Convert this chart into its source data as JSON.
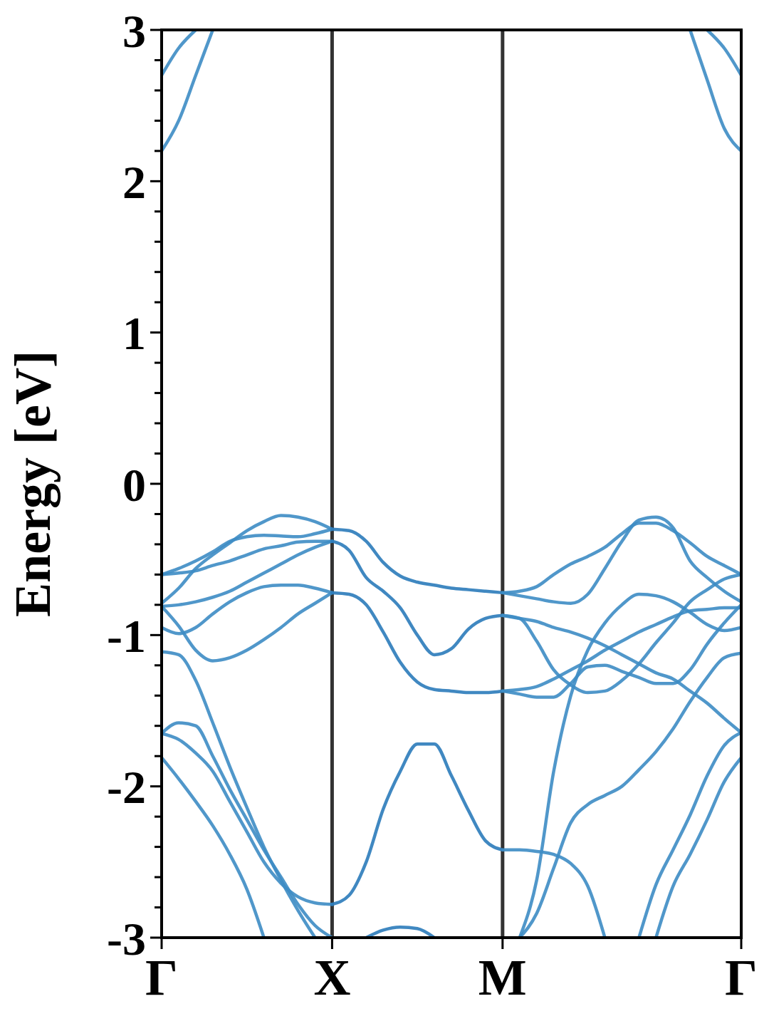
{
  "chart_data": {
    "type": "line",
    "ylabel": "Energy [eV]",
    "ylim": [
      -3,
      3
    ],
    "categories": [
      "Γ",
      null,
      null,
      null,
      null,
      null,
      null,
      null,
      null,
      null,
      "X",
      null,
      null,
      null,
      null,
      null,
      null,
      null,
      null,
      null,
      "M",
      null,
      null,
      null,
      null,
      null,
      null,
      null,
      null,
      null,
      null,
      null,
      null,
      null,
      "Γ"
    ],
    "yticks": [
      -3,
      {
        "value": -2.8,
        "label": null
      },
      {
        "value": -2.6,
        "label": null
      },
      {
        "value": -2.4,
        "label": null
      },
      {
        "value": -2.2,
        "label": null
      },
      -2,
      {
        "value": -1.8,
        "label": null
      },
      {
        "value": -1.6,
        "label": null
      },
      {
        "value": -1.4,
        "label": null
      },
      {
        "value": -1.2,
        "label": null
      },
      -1,
      {
        "value": -0.8,
        "label": null
      },
      {
        "value": -0.6,
        "label": null
      },
      {
        "value": -0.4,
        "label": null
      },
      {
        "value": -0.2,
        "label": null
      },
      0,
      {
        "value": 0.2,
        "label": null
      },
      {
        "value": 0.4,
        "label": null
      },
      {
        "value": 0.6,
        "label": null
      },
      {
        "value": 0.8,
        "label": null
      },
      1,
      {
        "value": 1.2,
        "label": null
      },
      {
        "value": 1.4,
        "label": null
      },
      {
        "value": 1.6,
        "label": null
      },
      {
        "value": 1.8,
        "label": null
      },
      2,
      {
        "value": 2.2,
        "label": null
      },
      {
        "value": 2.4,
        "label": null
      },
      {
        "value": 2.6,
        "label": null
      },
      {
        "value": 2.8,
        "label": null
      },
      3
    ],
    "ref_lines": [
      {
        "axis": "x",
        "value": "X",
        "color": "#333333"
      },
      {
        "axis": "x",
        "value": "M",
        "color": "#333333"
      }
    ],
    "series": [
      {
        "color": "#3d8cc4",
        "values": [
          2.7,
          2.88,
          3,
          null,
          null,
          null,
          null,
          null,
          null,
          null,
          null,
          null,
          null,
          null,
          null,
          null,
          null,
          null,
          null,
          null,
          null,
          null,
          null,
          null,
          null,
          null,
          null,
          null,
          null,
          null,
          null,
          null,
          null,
          null,
          null
        ]
      },
      {
        "color": "#3d8cc4",
        "values": [
          2.2,
          2.4,
          2.7,
          3,
          null,
          null,
          null,
          null,
          null,
          null,
          null,
          null,
          null,
          null,
          null,
          null,
          null,
          null,
          null,
          null,
          null,
          null,
          null,
          null,
          null,
          null,
          null,
          null,
          null,
          null,
          null,
          null,
          null,
          null,
          null
        ]
      },
      {
        "color": "#3d8cc4",
        "values": [
          -0.6,
          -0.56,
          -0.51,
          -0.45,
          -0.38,
          -0.35,
          -0.34,
          -0.345,
          -0.35,
          -0.33,
          -0.3,
          null,
          null,
          null,
          null,
          null,
          null,
          null,
          null,
          null,
          null,
          null,
          null,
          null,
          null,
          null,
          null,
          null,
          null,
          null,
          null,
          null,
          null,
          null,
          null
        ]
      },
      {
        "color": "#3d8cc4",
        "values": [
          -0.79,
          -0.69,
          -0.56,
          -0.47,
          -0.39,
          -0.31,
          -0.25,
          -0.21,
          -0.22,
          -0.25,
          -0.3,
          null,
          null,
          null,
          null,
          null,
          null,
          null,
          null,
          null,
          null,
          null,
          null,
          null,
          null,
          null,
          null,
          null,
          null,
          null,
          null,
          null,
          null,
          null,
          null
        ]
      },
      {
        "color": "#3d8cc4",
        "values": [
          -0.6,
          -0.59,
          -0.575,
          -0.54,
          -0.51,
          -0.47,
          -0.43,
          -0.41,
          -0.385,
          -0.38,
          -0.38,
          null,
          null,
          null,
          null,
          null,
          null,
          null,
          null,
          null,
          null,
          null,
          null,
          null,
          null,
          null,
          null,
          null,
          null,
          null,
          null,
          null,
          null,
          null,
          null
        ]
      },
      {
        "color": "#3d8cc4",
        "values": [
          -0.81,
          -0.8,
          -0.78,
          -0.75,
          -0.71,
          -0.65,
          -0.59,
          -0.53,
          -0.47,
          -0.42,
          -0.38,
          null,
          null,
          null,
          null,
          null,
          null,
          null,
          null,
          null,
          null,
          null,
          null,
          null,
          null,
          null,
          null,
          null,
          null,
          null,
          null,
          null,
          null,
          null,
          null
        ]
      },
      {
        "color": "#3d8cc4",
        "values": [
          -0.95,
          -0.99,
          -0.95,
          -0.86,
          -0.78,
          -0.72,
          -0.68,
          -0.67,
          -0.67,
          -0.69,
          -0.72,
          null,
          null,
          null,
          null,
          null,
          null,
          null,
          null,
          null,
          null,
          null,
          null,
          null,
          null,
          null,
          null,
          null,
          null,
          null,
          null,
          null,
          null,
          null,
          null
        ]
      },
      {
        "color": "#3d8cc4",
        "values": [
          -0.81,
          -0.94,
          -1.1,
          -1.17,
          -1.15,
          -1.1,
          -1.03,
          -0.95,
          -0.86,
          -0.79,
          -0.72,
          null,
          null,
          null,
          null,
          null,
          null,
          null,
          null,
          null,
          null,
          null,
          null,
          null,
          null,
          null,
          null,
          null,
          null,
          null,
          null,
          null,
          null,
          null,
          null
        ]
      },
      {
        "color": "#3d8cc4",
        "values": [
          -1.11,
          -1.13,
          -1.3,
          -1.58,
          -1.87,
          -2.14,
          -2.4,
          -2.62,
          -2.82,
          -3,
          null,
          null,
          null,
          null,
          null,
          null,
          null,
          null,
          null,
          null,
          null,
          null,
          null,
          null,
          null,
          null,
          null,
          null,
          null,
          null,
          null,
          null,
          null,
          null,
          null
        ]
      },
      {
        "color": "#3d8cc4",
        "values": [
          -1.65,
          -1.58,
          -1.6,
          -1.8,
          -2.02,
          -2.22,
          -2.42,
          -2.6,
          -2.78,
          -2.92,
          -3,
          null,
          null,
          null,
          null,
          null,
          null,
          null,
          null,
          null,
          null,
          null,
          null,
          null,
          null,
          null,
          null,
          null,
          null,
          null,
          null,
          null,
          null,
          null,
          null
        ]
      },
      {
        "color": "#3d8cc4",
        "values": [
          -1.65,
          -1.69,
          -1.78,
          -1.9,
          -2.1,
          -2.3,
          -2.5,
          -2.64,
          -2.73,
          -2.77,
          -2.78,
          null,
          null,
          null,
          null,
          null,
          null,
          null,
          null,
          null,
          null,
          null,
          null,
          null,
          null,
          null,
          null,
          null,
          null,
          null,
          null,
          null,
          null,
          null,
          null
        ]
      },
      {
        "color": "#3d8cc4",
        "values": [
          -1.81,
          -1.95,
          -2.1,
          -2.26,
          -2.45,
          -2.68,
          -3,
          null,
          null,
          null,
          null,
          null,
          null,
          null,
          null,
          null,
          null,
          null,
          null,
          null,
          null,
          null,
          null,
          null,
          null,
          null,
          null,
          null,
          null,
          null,
          null,
          null,
          null,
          null,
          null
        ]
      },
      {
        "color": "#2b7bba",
        "values": [
          null,
          null,
          null,
          null,
          null,
          null,
          null,
          null,
          null,
          null,
          -0.3,
          -0.31,
          -0.38,
          -0.52,
          -0.61,
          -0.65,
          -0.67,
          -0.69,
          -0.7,
          -0.71,
          -0.72,
          null,
          null,
          null,
          null,
          null,
          null,
          null,
          null,
          null,
          null,
          null,
          null,
          null,
          null
        ]
      },
      {
        "color": "#2b7bba",
        "values": [
          null,
          null,
          null,
          null,
          null,
          null,
          null,
          null,
          null,
          null,
          -0.38,
          -0.44,
          -0.62,
          -0.71,
          -0.82,
          -1,
          -1.13,
          -1.09,
          -0.96,
          -0.89,
          -0.87,
          null,
          null,
          null,
          null,
          null,
          null,
          null,
          null,
          null,
          null,
          null,
          null,
          null,
          null
        ]
      },
      {
        "color": "#2b7bba",
        "values": [
          null,
          null,
          null,
          null,
          null,
          null,
          null,
          null,
          null,
          null,
          -0.72,
          -0.73,
          -0.8,
          -0.98,
          -1.18,
          -1.31,
          -1.36,
          -1.37,
          -1.38,
          -1.38,
          -1.37,
          null,
          null,
          null,
          null,
          null,
          null,
          null,
          null,
          null,
          null,
          null,
          null,
          null,
          null
        ]
      },
      {
        "color": "#2b7bba",
        "values": [
          null,
          null,
          null,
          null,
          null,
          null,
          null,
          null,
          null,
          null,
          -2.78,
          -2.72,
          -2.5,
          -2.15,
          -1.9,
          -1.72,
          -1.72,
          -1.93,
          -2.16,
          -2.36,
          -2.42,
          null,
          null,
          null,
          null,
          null,
          null,
          null,
          null,
          null,
          null,
          null,
          null,
          null,
          null
        ]
      },
      {
        "color": "#2b7bba",
        "values": [
          null,
          null,
          null,
          null,
          null,
          null,
          null,
          null,
          null,
          null,
          null,
          null,
          -3,
          -2.95,
          -2.93,
          -2.94,
          -3,
          null,
          null,
          null,
          null,
          null,
          null,
          null,
          null,
          null,
          null,
          null,
          null,
          null,
          null,
          null,
          null,
          null,
          null
        ]
      },
      {
        "color": "#3d8cc4",
        "values": [
          null,
          null,
          null,
          null,
          null,
          null,
          null,
          null,
          null,
          null,
          null,
          null,
          null,
          null,
          null,
          null,
          null,
          null,
          null,
          null,
          -0.72,
          -0.71,
          -0.68,
          -0.6,
          -0.53,
          -0.48,
          -0.42,
          -0.33,
          -0.26,
          -0.26,
          -0.31,
          -0.39,
          -0.48,
          -0.54,
          -0.6
        ]
      },
      {
        "color": "#3d8cc4",
        "values": [
          null,
          null,
          null,
          null,
          null,
          null,
          null,
          null,
          null,
          null,
          null,
          null,
          null,
          null,
          null,
          null,
          null,
          null,
          null,
          null,
          -0.72,
          -0.74,
          -0.76,
          -0.78,
          -0.79,
          -0.73,
          -0.56,
          -0.38,
          -0.24,
          -0.22,
          -0.29,
          -0.51,
          -0.62,
          -0.71,
          -0.78
        ]
      },
      {
        "color": "#3d8cc4",
        "values": [
          null,
          null,
          null,
          null,
          null,
          null,
          null,
          null,
          null,
          null,
          null,
          null,
          null,
          null,
          null,
          null,
          null,
          null,
          null,
          null,
          -0.87,
          -0.89,
          -0.91,
          -0.95,
          -0.98,
          -1.02,
          -1.07,
          -1.13,
          -1.19,
          -1.25,
          -1.29,
          -1.37,
          -1.45,
          -1.55,
          -1.645
        ]
      },
      {
        "color": "#3d8cc4",
        "values": [
          null,
          null,
          null,
          null,
          null,
          null,
          null,
          null,
          null,
          null,
          null,
          null,
          null,
          null,
          null,
          null,
          null,
          null,
          null,
          null,
          -0.87,
          -0.89,
          -1.04,
          -1.23,
          -1.33,
          -1.38,
          -1.37,
          -1.3,
          -1.19,
          -1.05,
          -0.92,
          -0.78,
          -0.7,
          -0.63,
          -0.6
        ]
      },
      {
        "color": "#3d8cc4",
        "values": [
          null,
          null,
          null,
          null,
          null,
          null,
          null,
          null,
          null,
          null,
          null,
          null,
          null,
          null,
          null,
          null,
          null,
          null,
          null,
          null,
          -1.37,
          -1.36,
          -1.34,
          -1.29,
          -1.23,
          -1.17,
          -1.1,
          -1.04,
          -0.98,
          -0.93,
          -0.88,
          -0.84,
          -0.83,
          -0.82,
          -0.82
        ]
      },
      {
        "color": "#3d8cc4",
        "values": [
          null,
          null,
          null,
          null,
          null,
          null,
          null,
          null,
          null,
          null,
          null,
          null,
          null,
          null,
          null,
          null,
          null,
          null,
          null,
          null,
          -1.37,
          -1.39,
          -1.41,
          -1.41,
          -1.32,
          -1.21,
          -1.2,
          -1.24,
          -1.28,
          -1.32,
          -1.32,
          -1.23,
          -1.06,
          -0.92,
          -0.8
        ]
      },
      {
        "color": "#3d8cc4",
        "values": [
          null,
          null,
          null,
          null,
          null,
          null,
          null,
          null,
          null,
          null,
          null,
          null,
          null,
          null,
          null,
          null,
          null,
          null,
          null,
          null,
          null,
          -3,
          -2.62,
          -1.9,
          -1.4,
          -1.1,
          -0.92,
          -0.8,
          -0.73,
          -0.74,
          -0.78,
          -0.85,
          -0.93,
          -0.97,
          -0.95
        ]
      },
      {
        "color": "#3d8cc4",
        "values": [
          null,
          null,
          null,
          null,
          null,
          null,
          null,
          null,
          null,
          null,
          null,
          null,
          null,
          null,
          null,
          null,
          null,
          null,
          null,
          null,
          null,
          -3,
          -2.84,
          -2.54,
          -2.24,
          -2.12,
          -2.06,
          -2,
          -1.89,
          -1.77,
          -1.62,
          -1.44,
          -1.28,
          -1.15,
          -1.12
        ]
      },
      {
        "color": "#3d8cc4",
        "values": [
          null,
          null,
          null,
          null,
          null,
          null,
          null,
          null,
          null,
          null,
          null,
          null,
          null,
          null,
          null,
          null,
          null,
          null,
          null,
          null,
          -2.42,
          -2.42,
          -2.43,
          -2.45,
          -2.51,
          -2.66,
          -3,
          null,
          null,
          null,
          null,
          null,
          null,
          null,
          null
        ]
      },
      {
        "color": "#3d8cc4",
        "values": [
          null,
          null,
          null,
          null,
          null,
          null,
          null,
          null,
          null,
          null,
          null,
          null,
          null,
          null,
          null,
          null,
          null,
          null,
          null,
          null,
          null,
          null,
          null,
          null,
          null,
          null,
          null,
          null,
          -3,
          -2.65,
          -2.42,
          -2.19,
          -1.93,
          -1.73,
          -1.645
        ]
      },
      {
        "color": "#3d8cc4",
        "values": [
          null,
          null,
          null,
          null,
          null,
          null,
          null,
          null,
          null,
          null,
          null,
          null,
          null,
          null,
          null,
          null,
          null,
          null,
          null,
          null,
          null,
          null,
          null,
          null,
          null,
          null,
          null,
          null,
          null,
          -3,
          -2.66,
          -2.45,
          -2.22,
          -1.97,
          -1.81
        ]
      },
      {
        "color": "#3d8cc4",
        "values": [
          null,
          null,
          null,
          null,
          null,
          null,
          null,
          null,
          null,
          null,
          null,
          null,
          null,
          null,
          null,
          null,
          null,
          null,
          null,
          null,
          null,
          null,
          null,
          null,
          null,
          null,
          null,
          null,
          null,
          null,
          null,
          null,
          3,
          2.88,
          2.7
        ]
      },
      {
        "color": "#3d8cc4",
        "values": [
          null,
          null,
          null,
          null,
          null,
          null,
          null,
          null,
          null,
          null,
          null,
          null,
          null,
          null,
          null,
          null,
          null,
          null,
          null,
          null,
          null,
          null,
          null,
          null,
          null,
          null,
          null,
          null,
          null,
          null,
          null,
          3,
          2.67,
          2.35,
          2.2
        ]
      }
    ]
  }
}
